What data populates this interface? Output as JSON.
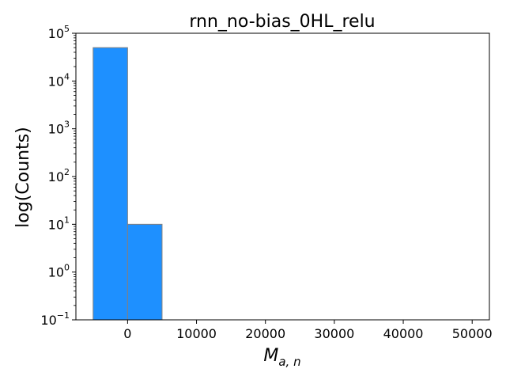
{
  "chart_data": {
    "type": "bar",
    "title": "rnn_no-bias_0HL_relu",
    "xlabel": "M_{a,n}",
    "xlabel_parts": {
      "base": "M",
      "sub": "a, n"
    },
    "ylabel": "log(Counts)",
    "yscale": "log",
    "ylim": [
      0.1,
      100000
    ],
    "xlim": [
      -7500,
      52500
    ],
    "grid": false,
    "legend": "none",
    "bins": [
      {
        "x0": -5000,
        "x1": 0,
        "count": 50000
      },
      {
        "x0": 0,
        "x1": 5000,
        "count": 10
      }
    ],
    "xticks": [
      {
        "value": 0,
        "label": "0"
      },
      {
        "value": 10000,
        "label": "10000"
      },
      {
        "value": 20000,
        "label": "20000"
      },
      {
        "value": 30000,
        "label": "30000"
      },
      {
        "value": 40000,
        "label": "40000"
      },
      {
        "value": 50000,
        "label": "50000"
      }
    ],
    "yticks": [
      {
        "exp": -1,
        "base": "10",
        "power": "−1"
      },
      {
        "exp": 0,
        "base": "10",
        "power": "0"
      },
      {
        "exp": 1,
        "base": "10",
        "power": "1"
      },
      {
        "exp": 2,
        "base": "10",
        "power": "2"
      },
      {
        "exp": 3,
        "base": "10",
        "power": "3"
      },
      {
        "exp": 4,
        "base": "10",
        "power": "4"
      },
      {
        "exp": 5,
        "base": "10",
        "power": "5"
      }
    ],
    "colors": {
      "bar_fill": "#1e90ff",
      "bar_edge": "#808080"
    }
  }
}
